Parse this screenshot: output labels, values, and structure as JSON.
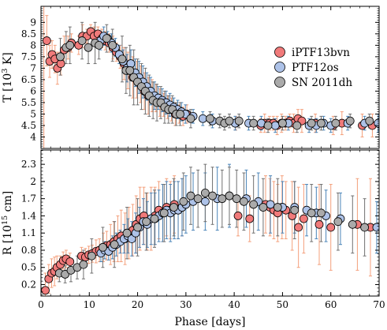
{
  "chart_data": [
    {
      "type": "scatter",
      "panel": "top",
      "ylabel": "T [10$^3$ K]",
      "ylabel_text": "T [10",
      "ylabel_sup": "3",
      "ylabel_end": " K]",
      "xlim": [
        0,
        70
      ],
      "ylim": [
        3.5,
        9.7
      ],
      "yticks": [
        4,
        4.5,
        5,
        5.5,
        6,
        6.5,
        7,
        7.5,
        8,
        8.5,
        9
      ],
      "ytick_labels": [
        "4",
        "4.5",
        "5",
        "5.5",
        "6",
        "6.5",
        "7",
        "7.5",
        "8",
        "8.5",
        "9"
      ],
      "legend_position": "upper-right",
      "series": [
        {
          "name": "iPTF13bvn",
          "color": "#f07a7a",
          "err_color": "#f4a07c",
          "x": [
            1.2,
            1.8,
            2.3,
            2.9,
            3.4,
            4.1,
            4.8,
            5.6,
            6.3,
            7.8,
            8.6,
            9.5,
            10.3,
            11.0,
            11.8,
            12.6,
            13.3,
            14.1,
            14.9,
            15.6,
            16.4,
            17.2,
            18.0,
            19.0,
            19.8,
            20.6,
            21.4,
            22.2,
            23.0,
            23.8,
            24.6,
            25.4,
            26.2,
            27.0,
            27.8,
            28.6,
            29.4,
            30.2,
            40.3,
            45.5,
            46.3,
            47.3,
            48.1,
            48.9,
            49.8,
            50.6,
            51.5,
            52.3,
            53.2,
            54.0,
            56.8,
            60.5,
            62.3,
            66.5,
            68.6
          ],
          "y": [
            8.2,
            7.3,
            7.6,
            7.4,
            7.0,
            7.2,
            7.8,
            7.9,
            8.1,
            8.0,
            8.4,
            8.4,
            8.6,
            8.4,
            8.5,
            8.3,
            8.2,
            8.1,
            7.9,
            7.7,
            7.5,
            7.2,
            6.9,
            6.6,
            6.5,
            6.3,
            6.0,
            5.8,
            5.8,
            5.7,
            5.5,
            5.4,
            5.3,
            5.2,
            5.0,
            5.0,
            4.9,
            5.0,
            4.6,
            4.5,
            4.6,
            4.6,
            4.6,
            4.5,
            4.6,
            4.6,
            4.7,
            4.6,
            4.8,
            4.7,
            4.6,
            4.5,
            4.6,
            4.5,
            4.5
          ],
          "err": [
            1.1,
            0.7,
            0.6,
            0.6,
            0.7,
            0.5,
            0.6,
            0.5,
            0.4,
            0.4,
            0.5,
            0.3,
            0.3,
            0.4,
            0.3,
            0.4,
            0.4,
            0.4,
            0.5,
            0.4,
            0.5,
            0.7,
            0.8,
            0.9,
            0.8,
            0.8,
            0.8,
            0.8,
            0.7,
            0.6,
            0.6,
            0.5,
            0.5,
            0.5,
            0.5,
            0.4,
            0.4,
            0.4,
            0.3,
            0.3,
            0.4,
            0.3,
            0.3,
            0.4,
            0.4,
            0.3,
            0.3,
            0.4,
            0.4,
            0.5,
            0.4,
            0.4,
            0.5,
            0.5,
            0.5
          ],
          "x_err": [
            {
              "x": 0.6,
              "y": 6.5,
              "err": 3.2
            }
          ]
        },
        {
          "name": "PTF12os",
          "color": "#adc2e8",
          "err_color": "#4a84b8",
          "x": [
            12.3,
            13.0,
            13.8,
            14.6,
            15.4,
            16.2,
            17.0,
            17.8,
            18.6,
            19.5,
            20.3,
            21.1,
            21.9,
            22.7,
            23.5,
            24.3,
            25.1,
            25.9,
            26.7,
            27.5,
            28.3,
            29.1,
            29.9,
            31.5,
            33.5,
            35.5,
            40.2,
            43.0,
            45.6,
            48.5,
            51.2,
            55.5,
            57.0,
            58.5,
            60.0,
            63.5,
            67.0,
            69.8
          ],
          "y": [
            8.2,
            8.4,
            8.3,
            8.1,
            7.9,
            7.6,
            7.3,
            7.0,
            7.2,
            6.8,
            6.6,
            6.4,
            6.2,
            6.0,
            5.8,
            5.7,
            5.6,
            5.5,
            5.4,
            5.3,
            5.2,
            5.1,
            5.0,
            4.9,
            4.8,
            4.7,
            4.6,
            4.6,
            4.6,
            4.5,
            4.6,
            4.5,
            4.5,
            4.6,
            4.5,
            4.6,
            4.6,
            4.6
          ],
          "err": [
            0.4,
            0.4,
            0.3,
            0.4,
            0.4,
            0.4,
            0.5,
            0.6,
            0.6,
            0.6,
            0.7,
            0.7,
            0.6,
            0.6,
            0.6,
            0.5,
            0.5,
            0.5,
            0.5,
            0.4,
            0.4,
            0.4,
            0.4,
            0.3,
            0.3,
            0.3,
            0.3,
            0.3,
            0.3,
            0.3,
            0.3,
            0.3,
            0.3,
            0.3,
            0.3,
            0.3,
            0.3,
            0.4
          ]
        },
        {
          "name": "SN 2011dh",
          "color": "#aaaaaa",
          "err_color": "#707070",
          "x": [
            4.0,
            5.2,
            6.0,
            8.5,
            9.8,
            11.2,
            12.0,
            13.6,
            14.8,
            16.8,
            17.6,
            18.4,
            19.2,
            20.0,
            20.8,
            21.6,
            22.4,
            23.2,
            24.0,
            24.8,
            25.6,
            26.4,
            27.2,
            28.0,
            28.8,
            31.0,
            35.0,
            37.0,
            38.0,
            39.0,
            41.0,
            44.0,
            47.0,
            50.0,
            53.0,
            56.0,
            58.0,
            61.0,
            64.0,
            68.0
          ],
          "y": [
            7.5,
            7.9,
            8.0,
            8.2,
            7.9,
            8.1,
            8.0,
            8.3,
            8.0,
            7.4,
            6.9,
            6.9,
            6.6,
            6.4,
            6.2,
            6.0,
            5.8,
            5.6,
            5.5,
            5.5,
            5.3,
            5.2,
            5.2,
            5.0,
            5.0,
            4.8,
            4.8,
            4.7,
            4.6,
            4.7,
            4.7,
            4.6,
            4.5,
            4.6,
            4.5,
            4.6,
            4.6,
            4.6,
            4.7,
            4.7
          ],
          "err": [
            0.8,
            0.7,
            0.8,
            0.8,
            0.7,
            0.9,
            0.6,
            0.6,
            0.7,
            1.0,
            1.0,
            1.1,
            1.2,
            1.0,
            1.0,
            1.0,
            0.9,
            0.8,
            0.8,
            0.7,
            0.7,
            0.6,
            0.6,
            0.5,
            0.5,
            0.4,
            0.3,
            0.3,
            0.3,
            0.3,
            0.3,
            0.3,
            0.3,
            0.3,
            0.3,
            0.3,
            0.3,
            0.3,
            0.3,
            0.3
          ]
        }
      ],
      "legend": [
        {
          "label": "iPTF13bvn",
          "color": "#f07a7a"
        },
        {
          "label": "PTF12os",
          "color": "#adc2e8"
        },
        {
          "label": "SN 2011dh",
          "color": "#aaaaaa"
        }
      ]
    },
    {
      "type": "scatter",
      "panel": "bottom",
      "ylabel_text": "R [10",
      "ylabel_sup": "15",
      "ylabel_end": " cm]",
      "xlabel": "Phase [days]",
      "xlim": [
        0,
        70
      ],
      "ylim": [
        0,
        2.55
      ],
      "xticks": [
        0,
        10,
        20,
        30,
        40,
        50,
        60,
        70
      ],
      "xtick_labels": [
        "0",
        "10",
        "20",
        "30",
        "40",
        "50",
        "60",
        "70"
      ],
      "yticks": [
        0.2,
        0.5,
        0.8,
        1.1,
        1.4,
        1.7,
        2.0,
        2.3
      ],
      "ytick_labels": [
        "0.2",
        "0.5",
        "0.8",
        "1.1",
        "1.4",
        "1.7",
        "2",
        "2.3"
      ],
      "series": [
        {
          "name": "iPTF13bvn",
          "color": "#f07a7a",
          "err_color": "#f4a07c",
          "x": [
            0.9,
            1.6,
            2.2,
            2.8,
            3.3,
            4.0,
            4.6,
            5.2,
            6.0,
            8.4,
            9.2,
            9.9,
            10.6,
            11.4,
            12.1,
            12.9,
            13.6,
            14.4,
            15.1,
            15.9,
            16.6,
            17.4,
            18.2,
            19.0,
            19.7,
            20.5,
            21.3,
            22.0,
            22.8,
            23.6,
            24.4,
            25.2,
            26.0,
            26.8,
            27.6,
            28.4,
            29.2,
            40.8,
            43.2,
            46.5,
            47.4,
            48.2,
            49.0,
            49.9,
            50.7,
            52.0,
            53.3,
            54.4,
            57.6,
            60.0,
            65.5,
            68.2
          ],
          "y": [
            0.1,
            0.3,
            0.4,
            0.43,
            0.5,
            0.55,
            0.62,
            0.65,
            0.6,
            0.7,
            0.68,
            0.72,
            0.74,
            0.78,
            0.8,
            0.85,
            0.88,
            0.9,
            0.95,
            1.0,
            1.05,
            1.0,
            1.1,
            1.15,
            1.25,
            1.35,
            1.4,
            1.3,
            1.35,
            1.4,
            1.5,
            1.45,
            1.55,
            1.5,
            1.6,
            1.5,
            1.55,
            1.4,
            1.35,
            1.6,
            1.55,
            1.5,
            1.45,
            1.55,
            1.5,
            1.4,
            1.2,
            1.35,
            1.25,
            1.2,
            1.25,
            1.2
          ],
          "err": [
            0.3,
            0.25,
            0.25,
            0.25,
            0.2,
            0.15,
            0.15,
            0.15,
            0.15,
            0.15,
            0.15,
            0.15,
            0.15,
            0.2,
            0.2,
            0.25,
            0.25,
            0.35,
            0.35,
            0.4,
            0.45,
            0.45,
            0.45,
            0.45,
            0.5,
            0.55,
            0.5,
            0.5,
            0.55,
            0.5,
            0.5,
            0.5,
            0.5,
            0.5,
            0.5,
            0.5,
            0.5,
            0.35,
            0.4,
            0.5,
            0.5,
            0.5,
            0.5,
            0.55,
            0.5,
            0.6,
            0.7,
            0.6,
            0.7,
            0.75,
            0.8,
            0.85
          ]
        },
        {
          "name": "PTF12os",
          "color": "#adc2e8",
          "err_color": "#4a84b8",
          "x": [
            12.4,
            13.2,
            14.0,
            14.8,
            15.6,
            16.4,
            17.2,
            18.0,
            18.8,
            19.6,
            20.4,
            21.2,
            22.0,
            22.8,
            23.6,
            24.4,
            25.2,
            26.0,
            26.8,
            27.6,
            28.4,
            29.2,
            30.0,
            31.5,
            34.0,
            36.5,
            39.0,
            42.5,
            45.0,
            47.5,
            50.0,
            52.5,
            55.0,
            57.0,
            59.0,
            62.0,
            69.5
          ],
          "y": [
            0.75,
            0.8,
            0.78,
            0.85,
            0.9,
            0.95,
            1.0,
            1.05,
            1.0,
            1.1,
            1.2,
            1.3,
            1.25,
            1.35,
            1.35,
            1.4,
            1.45,
            1.5,
            1.45,
            1.5,
            1.5,
            1.55,
            1.6,
            1.65,
            1.65,
            1.7,
            1.75,
            1.7,
            1.65,
            1.6,
            1.55,
            1.55,
            1.5,
            1.45,
            1.4,
            1.35,
            1.2
          ],
          "err": [
            0.15,
            0.15,
            0.15,
            0.2,
            0.2,
            0.2,
            0.25,
            0.3,
            0.3,
            0.35,
            0.35,
            0.4,
            0.4,
            0.45,
            0.45,
            0.45,
            0.5,
            0.5,
            0.5,
            0.5,
            0.5,
            0.5,
            0.5,
            0.5,
            0.5,
            0.55,
            0.55,
            0.5,
            0.5,
            0.5,
            0.45,
            0.45,
            0.45,
            0.45,
            0.45,
            0.45,
            0.45
          ]
        },
        {
          "name": "SN 2011dh",
          "color": "#aaaaaa",
          "err_color": "#707070",
          "x": [
            3.8,
            5.0,
            6.2,
            7.5,
            8.8,
            10.5,
            12.8,
            15.2,
            17.8,
            20.0,
            21.8,
            23.5,
            25.5,
            27.5,
            29.5,
            31.0,
            32.5,
            34.0,
            35.5,
            37.5,
            39.0,
            40.5,
            42.0,
            44.0,
            46.0,
            49.0,
            52.5,
            56.0,
            58.0,
            61.5,
            64.5,
            67.0
          ],
          "y": [
            0.4,
            0.38,
            0.45,
            0.5,
            0.55,
            0.7,
            0.85,
            0.9,
            1.1,
            1.2,
            1.3,
            1.35,
            1.45,
            1.55,
            1.65,
            1.75,
            1.7,
            1.8,
            1.75,
            1.7,
            1.75,
            1.7,
            1.65,
            1.6,
            1.55,
            1.55,
            1.5,
            1.45,
            1.45,
            1.3,
            1.25,
            1.2
          ],
          "err": [
            0.15,
            0.15,
            0.2,
            0.2,
            0.25,
            0.3,
            0.35,
            0.4,
            0.45,
            0.5,
            0.5,
            0.5,
            0.5,
            0.5,
            0.5,
            0.5,
            0.5,
            0.5,
            0.5,
            0.5,
            0.5,
            0.5,
            0.5,
            0.5,
            0.5,
            0.5,
            0.5,
            0.5,
            0.5,
            0.5,
            0.5,
            0.5
          ]
        }
      ]
    }
  ]
}
